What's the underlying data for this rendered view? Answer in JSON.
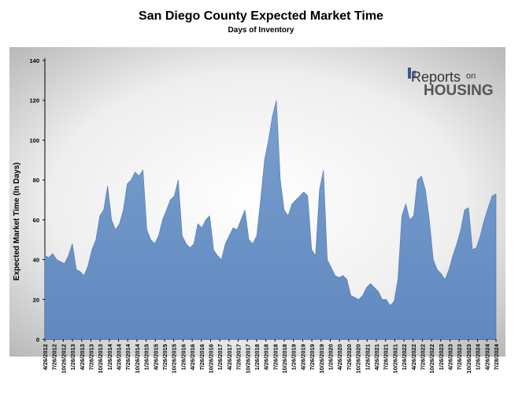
{
  "chart_data": {
    "type": "area",
    "title": "San Diego County Expected Market Time",
    "subtitle": "Days of Inventory",
    "ylabel": "Expected Market Time (In Days)",
    "ylim": [
      0,
      140
    ],
    "yticks": [
      0,
      20,
      40,
      60,
      80,
      100,
      120,
      140
    ],
    "grid": false,
    "logo": {
      "part1": "Reports",
      "part2": "on",
      "part3": "HOUSING"
    },
    "fill_color": "#6e96c8",
    "line_color": "#4a78b4",
    "xlabels": [
      "4/26/2012",
      "7/26/2012",
      "10/26/2012",
      "1/26/2013",
      "4/26/2013",
      "7/26/2013",
      "10/26/2013",
      "1/26/2014",
      "4/26/2014",
      "7/26/2014",
      "10/26/2014",
      "1/26/2015",
      "4/26/2015",
      "7/26/2015",
      "10/26/2015",
      "1/26/2016",
      "4/26/2016",
      "7/26/2016",
      "10/26/2016",
      "1/26/2017",
      "4/26/2017",
      "7/26/2017",
      "10/26/2017",
      "1/26/2018",
      "4/26/2018",
      "7/26/2018",
      "10/26/2018",
      "1/26/2019",
      "4/26/2019",
      "7/26/2019",
      "10/26/2019",
      "1/26/2020",
      "4/26/2020",
      "7/26/2020",
      "10/26/2020",
      "1/26/2021",
      "4/26/2021",
      "7/26/2021",
      "10/26/2021",
      "1/26/2022",
      "4/26/2022",
      "7/26/2022",
      "10/26/2022",
      "1/26/2023",
      "4/26/2023",
      "7/26/2023",
      "10/26/2023",
      "1/26/2024",
      "4/26/2024",
      "7/28/2024"
    ],
    "values": [
      42,
      41,
      43,
      40,
      39,
      38,
      42,
      48,
      35,
      34,
      32,
      37,
      45,
      50,
      62,
      65,
      77,
      60,
      55,
      58,
      65,
      78,
      80,
      84,
      82,
      85,
      55,
      50,
      48,
      52,
      60,
      65,
      70,
      72,
      80,
      52,
      48,
      46,
      48,
      58,
      56,
      60,
      62,
      45,
      42,
      40,
      48,
      52,
      56,
      55,
      60,
      65,
      50,
      48,
      52,
      70,
      90,
      100,
      112,
      120,
      80,
      65,
      62,
      68,
      70,
      72,
      74,
      72,
      45,
      42,
      75,
      85,
      40,
      36,
      32,
      31,
      32,
      30,
      22,
      21,
      20,
      22,
      26,
      28,
      26,
      24,
      20,
      20,
      17,
      19,
      30,
      62,
      68,
      60,
      62,
      80,
      82,
      75,
      60,
      40,
      35,
      33,
      30,
      35,
      42,
      48,
      55,
      65,
      66,
      45,
      46,
      52,
      60,
      66,
      72,
      73
    ]
  }
}
